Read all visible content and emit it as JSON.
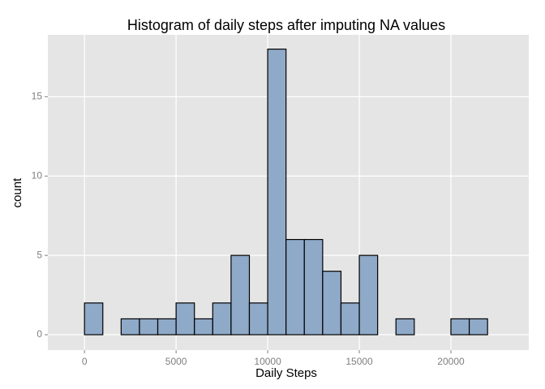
{
  "chart_data": {
    "type": "histogram",
    "title": "Histogram of daily steps after imputing NA values",
    "x_label": "Daily Steps",
    "y_label": "count",
    "bins": [
      -1000,
      0,
      1000,
      2000,
      3000,
      4000,
      5000,
      6000,
      7000,
      8000,
      9000,
      10000,
      11000,
      12000,
      13000,
      14000,
      15000,
      16000,
      17000,
      18000,
      19000,
      20000,
      21000,
      22000,
      23000
    ],
    "values": [
      0,
      2,
      0,
      1,
      1,
      1,
      2,
      1,
      2,
      5,
      2,
      18,
      6,
      6,
      4,
      2,
      5,
      0,
      1,
      0,
      0,
      1,
      1,
      0
    ],
    "color": "#8fa9c8",
    "edge_color": "#000000",
    "xlim": [
      -2000,
      24250
    ],
    "xticks": [
      0,
      5000,
      10000,
      15000,
      20000
    ],
    "ylim": [
      -0.97,
      18.9
    ],
    "yticks": [
      0,
      5,
      10,
      15
    ],
    "grid": true
  }
}
